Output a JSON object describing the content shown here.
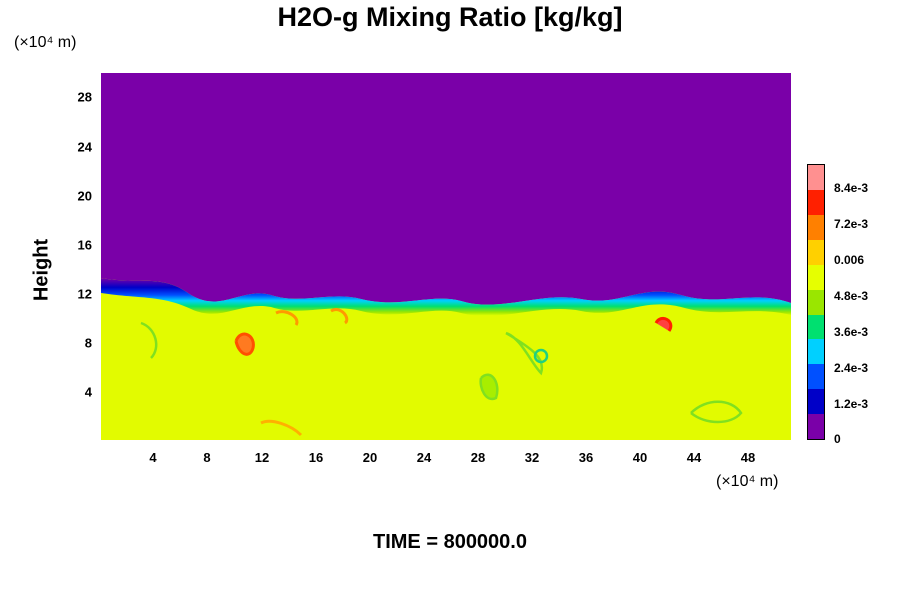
{
  "chart_data": {
    "type": "heatmap",
    "title": "H2O-g Mixing Ratio [kg/kg]",
    "ylabel": "Height",
    "xlabel": "",
    "y_unit": "(×10⁴ m)",
    "x_unit": "(×10⁴ m)",
    "xlim": [
      0,
      51
    ],
    "ylim": [
      0,
      30
    ],
    "x_ticks": [
      "4",
      "8",
      "12",
      "16",
      "20",
      "24",
      "28",
      "32",
      "36",
      "40",
      "44",
      "48"
    ],
    "y_ticks": [
      "4",
      "8",
      "12",
      "16",
      "20",
      "24",
      "28"
    ],
    "colorbar": {
      "range": [
        0,
        0.0092
      ],
      "tick_labels": [
        "0",
        "1.2e-3",
        "2.4e-3",
        "3.6e-3",
        "4.8e-3",
        "0.006",
        "7.2e-3",
        "8.4e-3"
      ],
      "tick_values": [
        0,
        0.0012,
        0.0024,
        0.0036,
        0.0048,
        0.006,
        0.0072,
        0.0084
      ],
      "colors": [
        "#7a00a8",
        "#0000c8",
        "#0050ff",
        "#00d0ff",
        "#00e070",
        "#9ae600",
        "#e6ff00",
        "#ffd000",
        "#ff8000",
        "#ff2000",
        "#ff9090"
      ]
    },
    "field_description": {
      "upper_layer_value": 0,
      "lower_layer_value": 0.0058,
      "interface_height": 11.5
    },
    "time_label": "TIME = 800000.0"
  }
}
